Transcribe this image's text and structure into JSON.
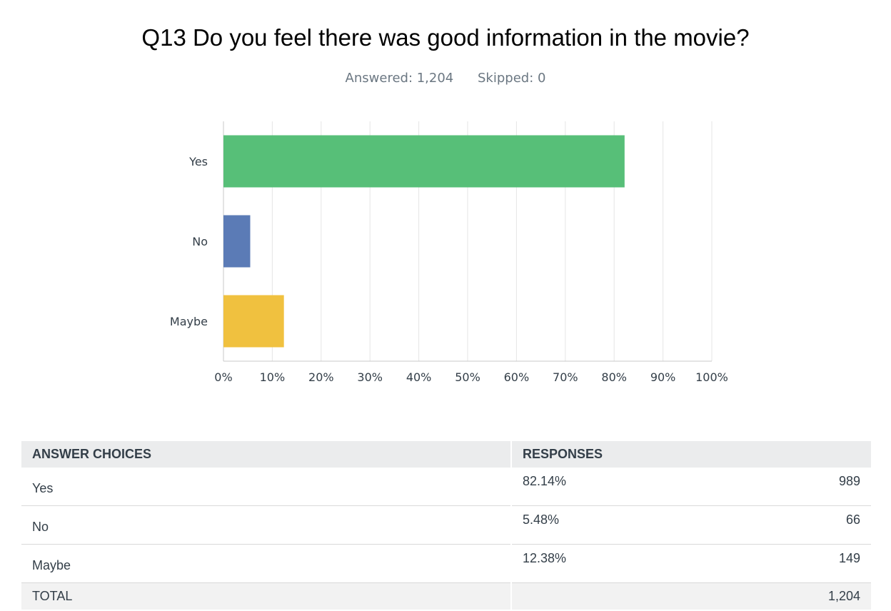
{
  "title": "Q13 Do you feel there was good information in the movie?",
  "answered_label": "Answered: 1,204",
  "skipped_label": "Skipped: 0",
  "chart_data": {
    "type": "bar",
    "orientation": "horizontal",
    "categories": [
      "Yes",
      "No",
      "Maybe"
    ],
    "values": [
      82.14,
      5.48,
      12.38
    ],
    "colors": [
      "#57bf78",
      "#5b7bb6",
      "#f0c13f"
    ],
    "xlim": [
      0,
      100
    ],
    "xticks": [
      "0%",
      "10%",
      "20%",
      "30%",
      "40%",
      "50%",
      "60%",
      "70%",
      "80%",
      "90%",
      "100%"
    ],
    "grid": true
  },
  "table": {
    "headers": [
      "ANSWER CHOICES",
      "RESPONSES"
    ],
    "rows": [
      {
        "choice": "Yes",
        "percent": "82.14%",
        "count": "989"
      },
      {
        "choice": "No",
        "percent": "5.48%",
        "count": "66"
      },
      {
        "choice": "Maybe",
        "percent": "12.38%",
        "count": "149"
      }
    ],
    "total_label": "TOTAL",
    "total_count": "1,204"
  }
}
